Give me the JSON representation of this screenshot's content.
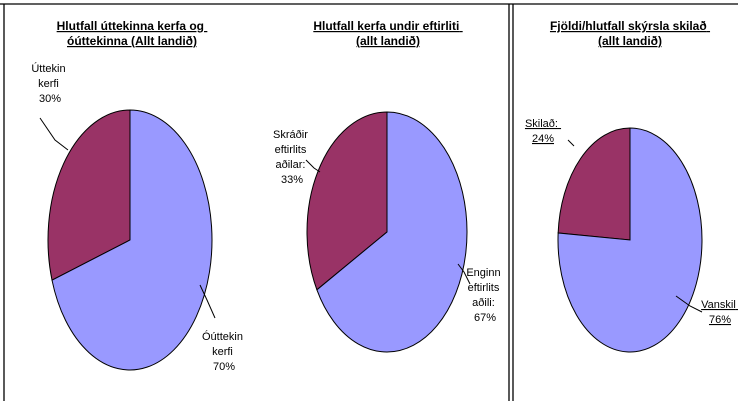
{
  "colors": {
    "periwinkle": "#9999ff",
    "plum": "#993366"
  },
  "chart_data": [
    {
      "type": "pie",
      "title": [
        "Hlutfall úttekinna kerfa og",
        "óúttekinna (Allt landið)"
      ],
      "slices": [
        {
          "label": [
            "Úttekin",
            "kerfi",
            "30%"
          ],
          "value": 30,
          "color": "#993366"
        },
        {
          "label": [
            "Óúttekin",
            "kerfi",
            "70%"
          ],
          "value": 70,
          "color": "#9999ff"
        }
      ],
      "legend": "none",
      "grid": false
    },
    {
      "type": "pie",
      "title": [
        "Hlutfall kerfa undir eftirliti",
        "(allt landið)"
      ],
      "slices": [
        {
          "label": [
            "Skráðir",
            "eftirlits",
            "aðilar:",
            "33%"
          ],
          "value": 33,
          "color": "#993366"
        },
        {
          "label": [
            "Enginn",
            "eftirlits",
            "aðili:",
            "67%"
          ],
          "value": 67,
          "color": "#9999ff"
        }
      ],
      "legend": "none",
      "grid": false
    },
    {
      "type": "pie",
      "title": [
        "Fjöldi/hlutfall skýrsla skilað",
        "(allt landið)"
      ],
      "slices": [
        {
          "label": [
            "Skilað:",
            "24%"
          ],
          "value": 24,
          "color": "#993366"
        },
        {
          "label": [
            "Vanskil",
            "76%"
          ],
          "value": 76,
          "color": "#9999ff"
        }
      ],
      "legend": "none",
      "grid": false
    }
  ]
}
